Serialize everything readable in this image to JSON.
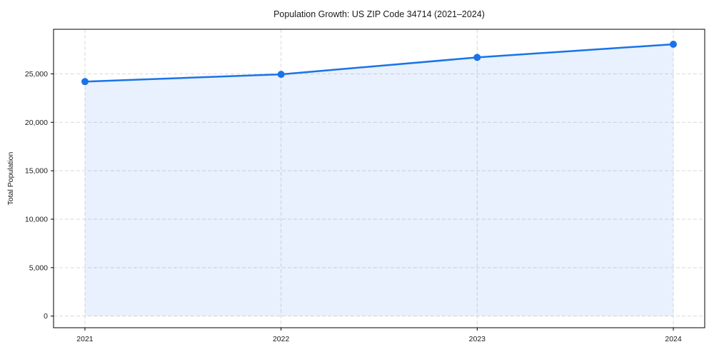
{
  "chart_data": {
    "type": "area",
    "title": "Population Growth: US ZIP Code 34714 (2021–2024)",
    "xlabel": "",
    "ylabel": "Total Population",
    "x": [
      2021,
      2022,
      2023,
      2024
    ],
    "series": [
      {
        "name": "Total Population",
        "values": [
          24200,
          24950,
          26700,
          28050
        ]
      }
    ],
    "x_tick_labels": [
      "2021",
      "2022",
      "2023",
      "2024"
    ],
    "y_ticks": [
      0,
      5000,
      10000,
      15000,
      20000,
      25000
    ],
    "y_tick_labels": [
      "0",
      "5,000",
      "10,000",
      "15,000",
      "20,000",
      "25,000"
    ],
    "xlim": [
      2020.84,
      2024.16
    ],
    "ylim": [
      -1200,
      29600
    ],
    "fill_baseline": 0,
    "grid": true,
    "legend": "none",
    "colors": {
      "line": "#1a73e8",
      "marker": "#1a73e8",
      "fill": "rgba(26,115,232,0.10)",
      "grid": "#d9d9d9",
      "axis": "#000000",
      "text": "#1a1a1a",
      "background": "#ffffff"
    }
  }
}
